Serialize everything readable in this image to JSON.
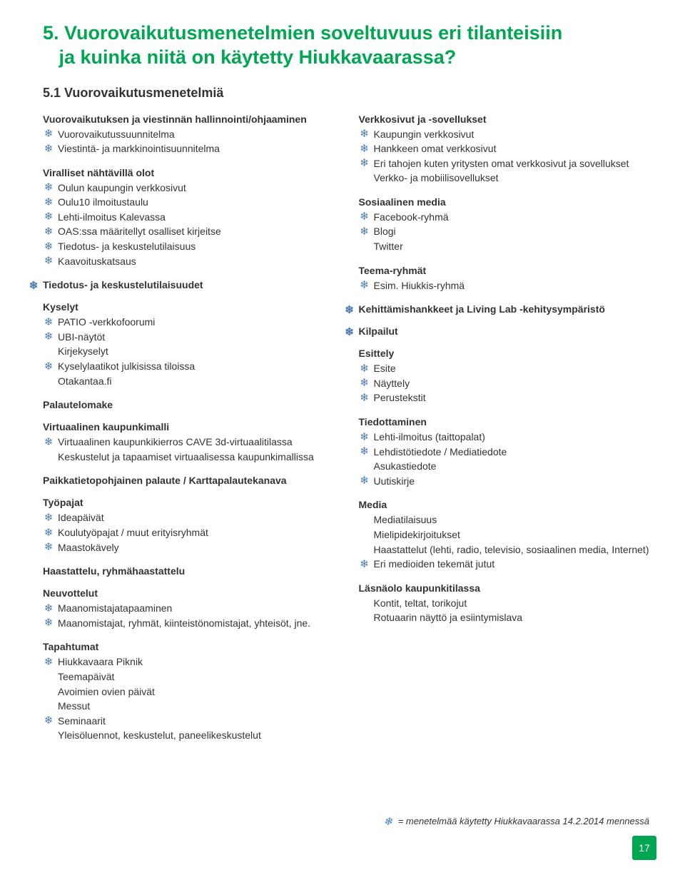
{
  "title_line1": "5. Vuorovaikutusmenetelmien soveltuvuus eri tilanteisiin",
  "title_line2": "ja kuinka niitä on käytetty Hiukkavaarassa?",
  "subtitle": "5.1 Vuorovaikutusmenetelmiä",
  "icon_color": "#4a7bb5",
  "accent_color": "#00a651",
  "page_number": "17",
  "legend_text": "= menetelmää käytetty Hiukkavaarassa 14.2.2014 mennessä",
  "left": {
    "s1": {
      "heading": "Vuorovaikutuksen ja viestinnän hallinnointi/ohjaaminen",
      "items": [
        {
          "t": "Vuorovaikutussuunnitelma",
          "i": true
        },
        {
          "t": "Viestintä- ja markkinointisuunnitelma",
          "i": true
        }
      ]
    },
    "s2": {
      "heading": "Viralliset nähtävillä olot",
      "items": [
        {
          "t": "Oulun kaupungin verkkosivut",
          "i": true
        },
        {
          "t": "Oulu10 ilmoitustaulu",
          "i": true
        },
        {
          "t": "Lehti-ilmoitus Kalevassa",
          "i": true
        },
        {
          "t": "OAS:ssa määritellyt osalliset kirjeitse",
          "i": true
        },
        {
          "t": "Tiedotus- ja keskustelutilaisuus",
          "i": true
        },
        {
          "t": "Kaavoituskatsaus",
          "i": true
        }
      ]
    },
    "s3": {
      "heading": "Tiedotus- ja keskustelutilaisuudet",
      "outdent": true
    },
    "s4": {
      "heading": "Kyselyt",
      "items": [
        {
          "t": "PATIO -verkkofoorumi",
          "i": true
        },
        {
          "t": "UBI-näytöt",
          "i": true
        },
        {
          "t": "Kirjekyselyt",
          "i": false
        },
        {
          "t": "Kyselylaatikot julkisissa tiloissa",
          "i": true
        },
        {
          "t": "Otakantaa.fi",
          "i": false
        }
      ]
    },
    "s5": {
      "heading": "Palautelomake"
    },
    "s6": {
      "heading": "Virtuaalinen kaupunkimalli",
      "items": [
        {
          "t": "Virtuaalinen kaupunkikierros CAVE 3d-virtuaalitilassa",
          "i": true
        },
        {
          "t": "Keskustelut ja tapaamiset virtuaalisessa kaupunkimallissa",
          "i": false
        }
      ]
    },
    "s7": {
      "heading": "Paikkatietopohjainen palaute / Karttapalautekanava"
    },
    "s8": {
      "heading": "Työpajat",
      "items": [
        {
          "t": "Ideapäivät",
          "i": true
        },
        {
          "t": "Koulutyöpajat / muut erityisryhmät",
          "i": true
        },
        {
          "t": "Maastokävely",
          "i": true
        }
      ]
    },
    "s9": {
      "heading": "Haastattelu, ryhmähaastattelu"
    },
    "s10": {
      "heading": "Neuvottelut",
      "items": [
        {
          "t": "Maanomistajatapaaminen",
          "i": true
        },
        {
          "t": "Maanomistajat, ryhmät, kiinteistönomistajat, yhteisöt, jne.",
          "i": true
        }
      ]
    },
    "s11": {
      "heading": "Tapahtumat",
      "items": [
        {
          "t": "Hiukkavaara Piknik",
          "i": true
        },
        {
          "t": "Teemapäivät",
          "i": false
        },
        {
          "t": "Avoimien ovien päivät",
          "i": false
        },
        {
          "t": "Messut",
          "i": false
        },
        {
          "t": "Seminaarit",
          "i": true
        },
        {
          "t": "Yleisöluennot, keskustelut, paneelikeskustelut",
          "i": false
        }
      ]
    }
  },
  "right": {
    "s1": {
      "heading": "Verkkosivut ja -sovellukset",
      "items": [
        {
          "t": "Kaupungin verkkosivut",
          "i": true
        },
        {
          "t": "Hankkeen omat verkkosivut",
          "i": true
        },
        {
          "t": "Eri tahojen kuten yritysten omat verkkosivut ja sovellukset",
          "i": true
        },
        {
          "t": "Verkko- ja mobiilisovellukset",
          "i": false
        }
      ]
    },
    "s2": {
      "heading": "Sosiaalinen media",
      "items": [
        {
          "t": "Facebook-ryhmä",
          "i": true
        },
        {
          "t": "Blogi",
          "i": true
        },
        {
          "t": "Twitter",
          "i": false
        }
      ]
    },
    "s3": {
      "heading": "Teema-ryhmät",
      "items": [
        {
          "t": "Esim. Hiukkis-ryhmä",
          "i": true
        }
      ]
    },
    "s4": {
      "heading": "Kehittämishankkeet ja Living Lab -kehitysympäristö",
      "outdent": true
    },
    "s5": {
      "heading": "Kilpailut",
      "outdent": true
    },
    "s6": {
      "heading": "Esittely",
      "items": [
        {
          "t": "Esite",
          "i": true
        },
        {
          "t": "Näyttely",
          "i": true
        },
        {
          "t": "Perustekstit",
          "i": true
        }
      ]
    },
    "s7": {
      "heading": "Tiedottaminen",
      "items": [
        {
          "t": "Lehti-ilmoitus (taittopalat)",
          "i": true
        },
        {
          "t": "Lehdistötiedote / Mediatiedote",
          "i": true
        },
        {
          "t": "Asukastiedote",
          "i": false
        },
        {
          "t": "Uutiskirje",
          "i": true
        }
      ]
    },
    "s8": {
      "heading": "Media",
      "items": [
        {
          "t": "Mediatilaisuus",
          "i": false
        },
        {
          "t": "Mielipidekirjoitukset",
          "i": false
        },
        {
          "t": "Haastattelut (lehti, radio, televisio, sosiaalinen media, Internet)",
          "i": false
        },
        {
          "t": "Eri medioiden tekemät jutut",
          "i": true
        }
      ]
    },
    "s9": {
      "heading": "Läsnäolo kaupunkitilassa",
      "items": [
        {
          "t": "Kontit, teltat, torikojut",
          "i": false
        },
        {
          "t": "Rotuaarin näyttö ja esiintymislava",
          "i": false
        }
      ]
    }
  }
}
